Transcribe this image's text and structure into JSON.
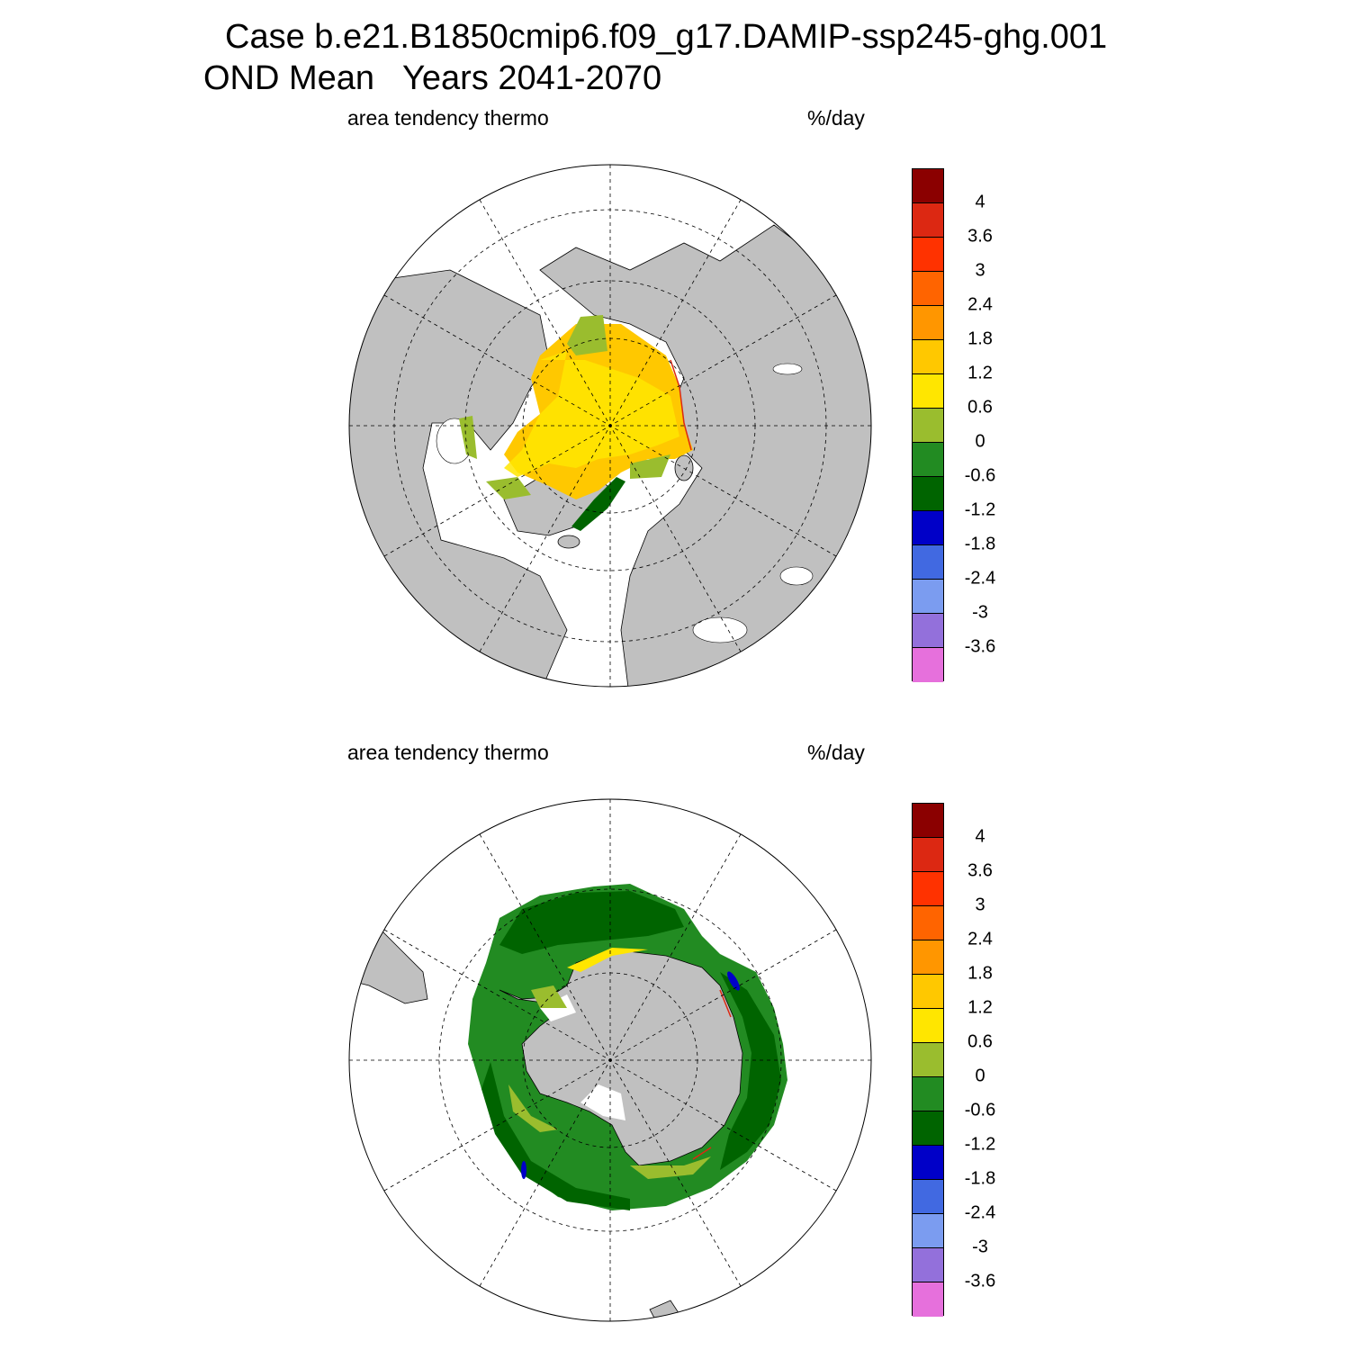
{
  "title_line1": "Case b.e21.B1850cmip6.f09_g17.DAMIP-ssp245-ghg.001",
  "title_line2": "OND Mean   Years 2041-2070",
  "panels": [
    {
      "name": "north",
      "variable": "area tendency thermo",
      "units": "%/day"
    },
    {
      "name": "south",
      "variable": "area tendency thermo",
      "units": "%/day"
    }
  ],
  "colorbar": {
    "labels": [
      "4",
      "3.6",
      "3",
      "2.4",
      "1.8",
      "1.2",
      "0.6",
      "0",
      "-0.6",
      "-1.2",
      "-1.8",
      "-2.4",
      "-3",
      "-3.6"
    ],
    "colors": [
      "#8b0000",
      "#dc2812",
      "#ff3200",
      "#ff6400",
      "#ff9600",
      "#ffc800",
      "#ffe600",
      "#9abd2e",
      "#228b22",
      "#006400",
      "#0000c8",
      "#4169e1",
      "#7b9cf0",
      "#9370db",
      "#e670dc"
    ]
  },
  "map_colors": {
    "land": "#c0c0c0",
    "ocean": "#ffffff"
  }
}
